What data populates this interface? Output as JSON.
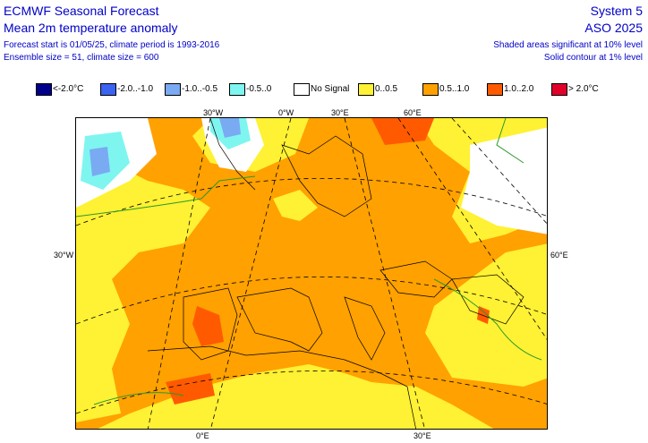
{
  "header": {
    "title": "ECMWF Seasonal Forecast",
    "subtitle": "Mean 2m temperature anomaly",
    "forecast_info": "Forecast start is 01/05/25, climate period is 1993-2016",
    "ensemble_info": "Ensemble size = 51, climate size = 600",
    "system": "System 5",
    "period": "ASO 2025",
    "significance_note": "Shaded areas significant at 10% level",
    "contour_note": "Solid contour at 1% level"
  },
  "legend": [
    {
      "label": "<-2.0°C",
      "color": "#00008b"
    },
    {
      "label": "-2.0..-1.0",
      "color": "#3a63f0"
    },
    {
      "label": "-1.0..-0.5",
      "color": "#7aaaf2"
    },
    {
      "label": "-0.5..0",
      "color": "#7ff5f0"
    },
    {
      "label": "No Signal",
      "color": "#ffffff"
    },
    {
      "label": "0..0.5",
      "color": "#fff133"
    },
    {
      "label": "0.5..1.0",
      "color": "#ffa100"
    },
    {
      "label": "1.0..2.0",
      "color": "#ff5a00"
    },
    {
      "label": "> 2.0°C",
      "color": "#e0002a"
    }
  ],
  "coords": {
    "top_30w": "30°W",
    "top_0w": "0°W",
    "top_30e": "30°E",
    "top_60e": "60°E",
    "left_30w": "30°W",
    "right_60e": "60°E",
    "bottom_0e": "0°E",
    "bottom_30e": "30°E"
  }
}
